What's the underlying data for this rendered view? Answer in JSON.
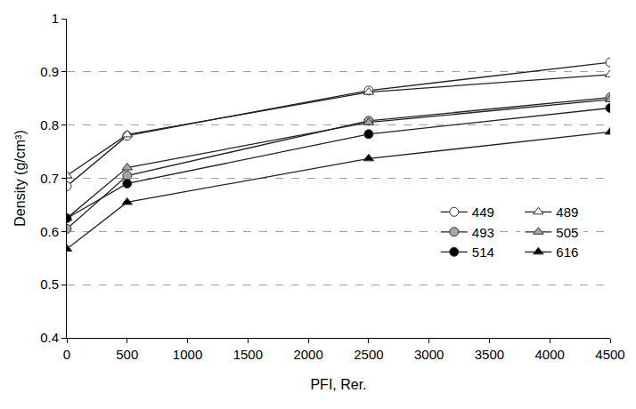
{
  "chart_data": {
    "type": "line",
    "x_label": "PFI, Rer.",
    "y_label": "Density (g/cm³)",
    "x": [
      0,
      500,
      2500,
      4500
    ],
    "series": [
      {
        "name": "449",
        "color": "#ffffff",
        "marker": "circle",
        "values": [
          0.685,
          0.78,
          0.865,
          0.918
        ]
      },
      {
        "name": "489",
        "color": "#ffffff",
        "marker": "triangle",
        "values": [
          0.705,
          0.782,
          0.862,
          0.895
        ]
      },
      {
        "name": "493",
        "color": "#a6a6a6",
        "marker": "circle",
        "values": [
          0.605,
          0.705,
          0.808,
          0.852
        ]
      },
      {
        "name": "505",
        "color": "#a6a6a6",
        "marker": "triangle",
        "values": [
          0.625,
          0.72,
          0.805,
          0.848
        ]
      },
      {
        "name": "514",
        "color": "#000000",
        "marker": "circle",
        "values": [
          0.625,
          0.69,
          0.783,
          0.832
        ]
      },
      {
        "name": "616",
        "color": "#000000",
        "marker": "triangle",
        "values": [
          0.567,
          0.655,
          0.737,
          0.787
        ]
      }
    ],
    "xlim": [
      0,
      4500
    ],
    "xticks": [
      0,
      500,
      1000,
      1500,
      2000,
      2500,
      3000,
      3500,
      4000,
      4500
    ],
    "ylim": [
      0.4,
      1
    ],
    "yticks": [
      0.4,
      0.5,
      0.6,
      0.7,
      0.8,
      0.9,
      1
    ],
    "grid": true,
    "legend": "lower right"
  }
}
